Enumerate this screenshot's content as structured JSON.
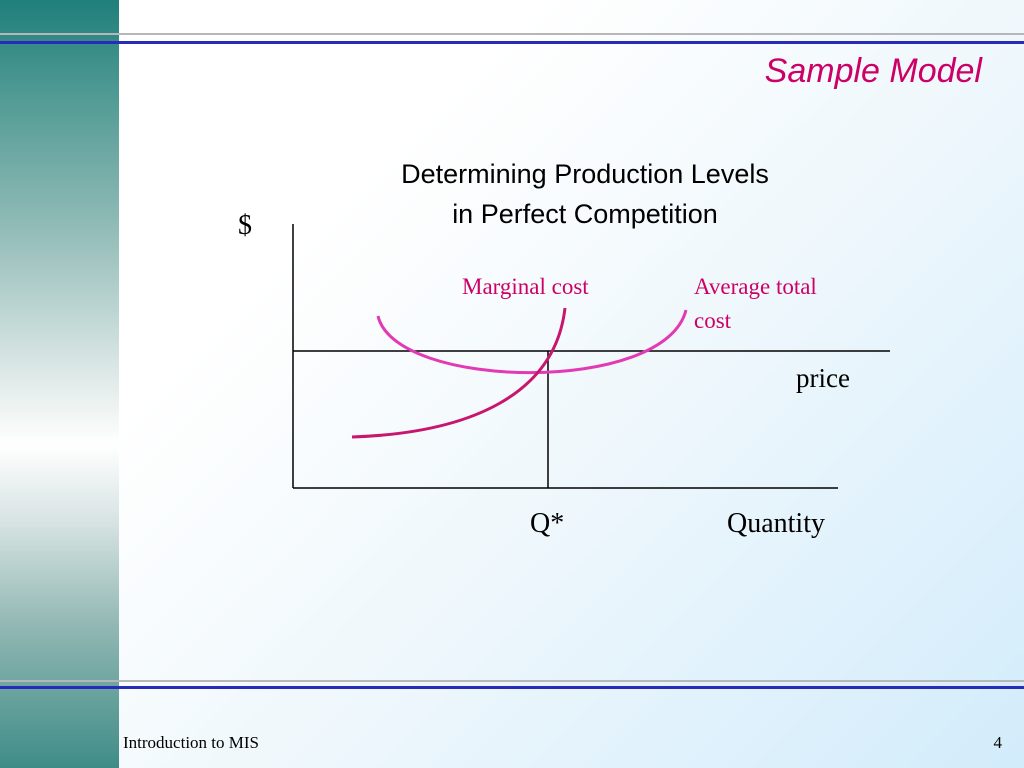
{
  "slide": {
    "title": "Sample Model",
    "footer_left": "Introduction to MIS",
    "page_number": "4"
  },
  "diagram": {
    "title_line1": "Determining Production Levels",
    "title_line2": "in Perfect Competition",
    "y_axis_label": "$",
    "x_axis_label": "Quantity",
    "q_star_label": "Q*",
    "price_label": "price",
    "marginal_cost_label": "Marginal cost",
    "average_total_cost_line1": "Average total",
    "average_total_cost_line2": "cost"
  },
  "colors": {
    "accent": "#cc0066",
    "marginal_cost_curve": "#c8166e",
    "average_total_cost_curve": "#e23ab4",
    "rule": "#2a2ab8",
    "teal": "#1f7f7a"
  }
}
